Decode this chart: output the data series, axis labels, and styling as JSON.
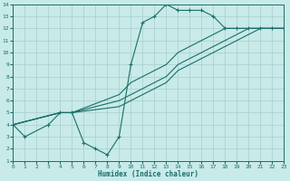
{
  "xlabel": "Humidex (Indice chaleur)",
  "bg_color": "#c8eae8",
  "grid_color": "#a8cece",
  "line_color": "#1a6e6a",
  "xlim": [
    0,
    23
  ],
  "ylim": [
    1,
    14
  ],
  "xticks": [
    0,
    1,
    2,
    3,
    4,
    5,
    6,
    7,
    8,
    9,
    10,
    11,
    12,
    13,
    14,
    15,
    16,
    17,
    18,
    19,
    20,
    21,
    22,
    23
  ],
  "yticks": [
    1,
    2,
    3,
    4,
    5,
    6,
    7,
    8,
    9,
    10,
    11,
    12,
    13,
    14
  ],
  "curves": [
    {
      "x": [
        0,
        1,
        3,
        4,
        5,
        6,
        7,
        8,
        9,
        10,
        11,
        12,
        13,
        14,
        15,
        16,
        17,
        18,
        19,
        20,
        21,
        22,
        23
      ],
      "y": [
        4,
        3,
        4,
        5,
        5,
        2.5,
        2,
        1.5,
        3,
        9,
        12.5,
        13,
        14,
        13.5,
        13.5,
        13.5,
        13,
        12,
        12,
        12,
        12,
        12,
        12
      ],
      "marker": true
    },
    {
      "x": [
        0,
        4,
        5,
        9,
        10,
        11,
        12,
        13,
        14,
        15,
        16,
        17,
        18,
        19,
        20,
        21,
        22,
        23
      ],
      "y": [
        4,
        5,
        5,
        6.5,
        7.5,
        8,
        8.5,
        9,
        10,
        10.5,
        11,
        11.5,
        12,
        12,
        12,
        12,
        12,
        12
      ],
      "marker": false
    },
    {
      "x": [
        0,
        4,
        5,
        9,
        10,
        11,
        12,
        13,
        14,
        15,
        16,
        17,
        18,
        19,
        20,
        21,
        22,
        23
      ],
      "y": [
        4,
        5,
        5,
        6,
        6.5,
        7,
        7.5,
        8,
        9,
        9.5,
        10,
        10.5,
        11,
        11.5,
        12,
        12,
        12,
        12
      ],
      "marker": false
    },
    {
      "x": [
        0,
        4,
        5,
        9,
        10,
        11,
        12,
        13,
        14,
        15,
        16,
        17,
        18,
        19,
        20,
        21,
        22,
        23
      ],
      "y": [
        4,
        5,
        5,
        5.5,
        6,
        6.5,
        7,
        7.5,
        8.5,
        9,
        9.5,
        10,
        10.5,
        11,
        11.5,
        12,
        12,
        12
      ],
      "marker": false
    }
  ]
}
